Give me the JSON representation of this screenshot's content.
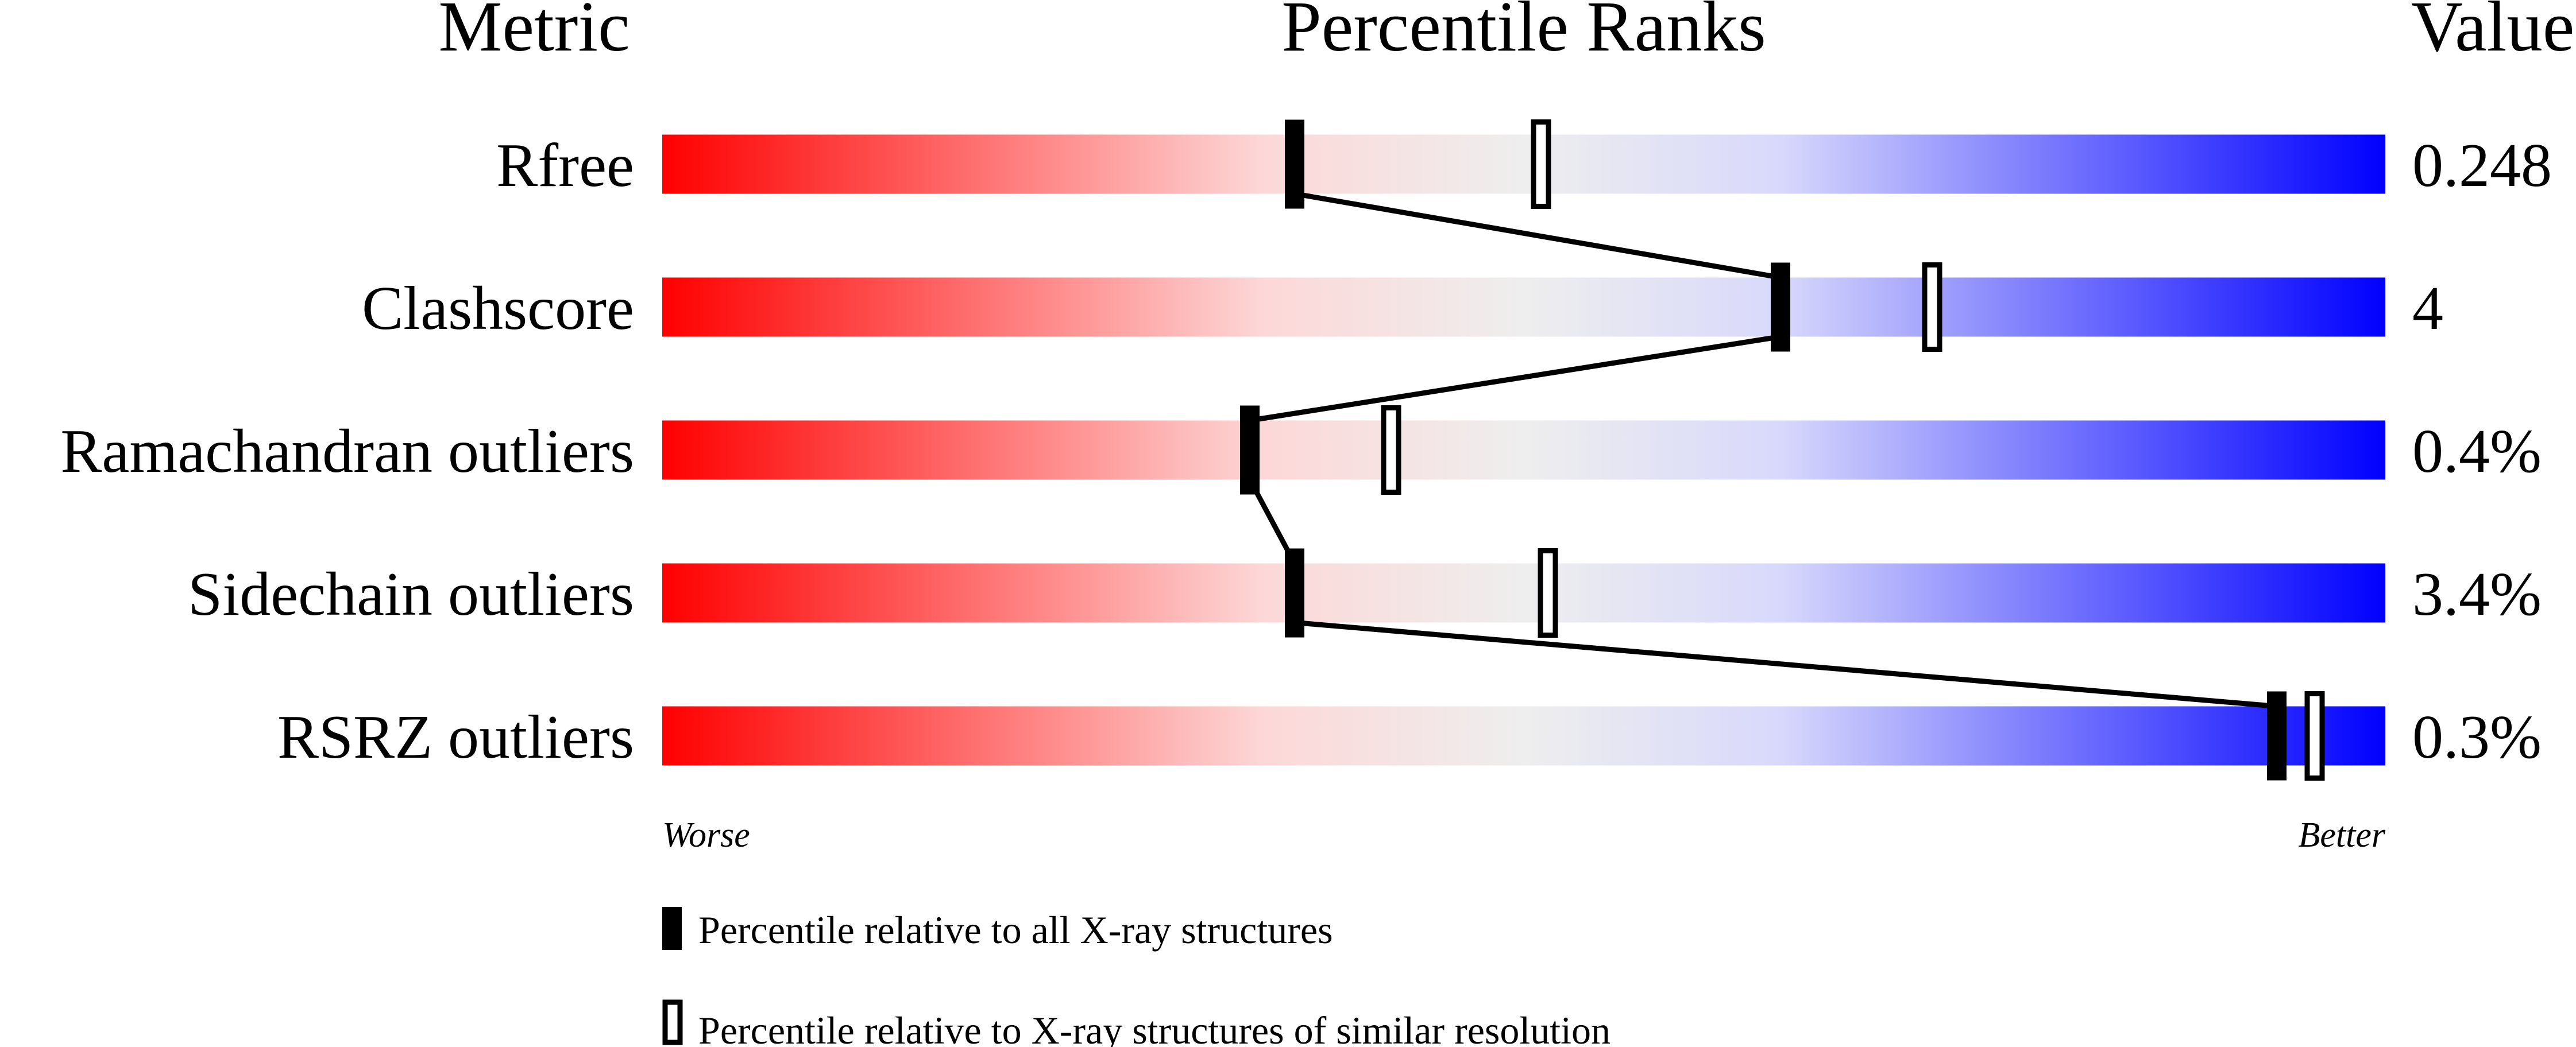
{
  "chart_data": {
    "type": "percentile-slider",
    "headers": {
      "metric": "Metric",
      "ranks": "Percentile Ranks",
      "value": "Value"
    },
    "xlim": [
      0,
      100
    ],
    "metrics": [
      {
        "name": "Rfree",
        "value": "0.248",
        "percentile_all": 36.7,
        "percentile_similar": 51.0
      },
      {
        "name": "Clashscore",
        "value": "4",
        "percentile_all": 64.9,
        "percentile_similar": 73.7
      },
      {
        "name": "Ramachandran outliers",
        "value": "0.4%",
        "percentile_all": 34.1,
        "percentile_similar": 42.3
      },
      {
        "name": "Sidechain outliers",
        "value": "3.4%",
        "percentile_all": 36.7,
        "percentile_similar": 51.4
      },
      {
        "name": "RSRZ outliers",
        "value": "0.3%",
        "percentile_all": 93.7,
        "percentile_similar": 95.9
      }
    ],
    "scale_labels": {
      "left": "Worse",
      "right": "Better"
    },
    "legend": [
      {
        "marker": "filled",
        "label": "Percentile relative to all X-ray structures"
      },
      {
        "marker": "open",
        "label": "Percentile relative to X-ray structures of similar resolution"
      }
    ],
    "colors": {
      "worse": "#ff0000",
      "middle": "#eeeeee",
      "better": "#0000ff"
    }
  }
}
